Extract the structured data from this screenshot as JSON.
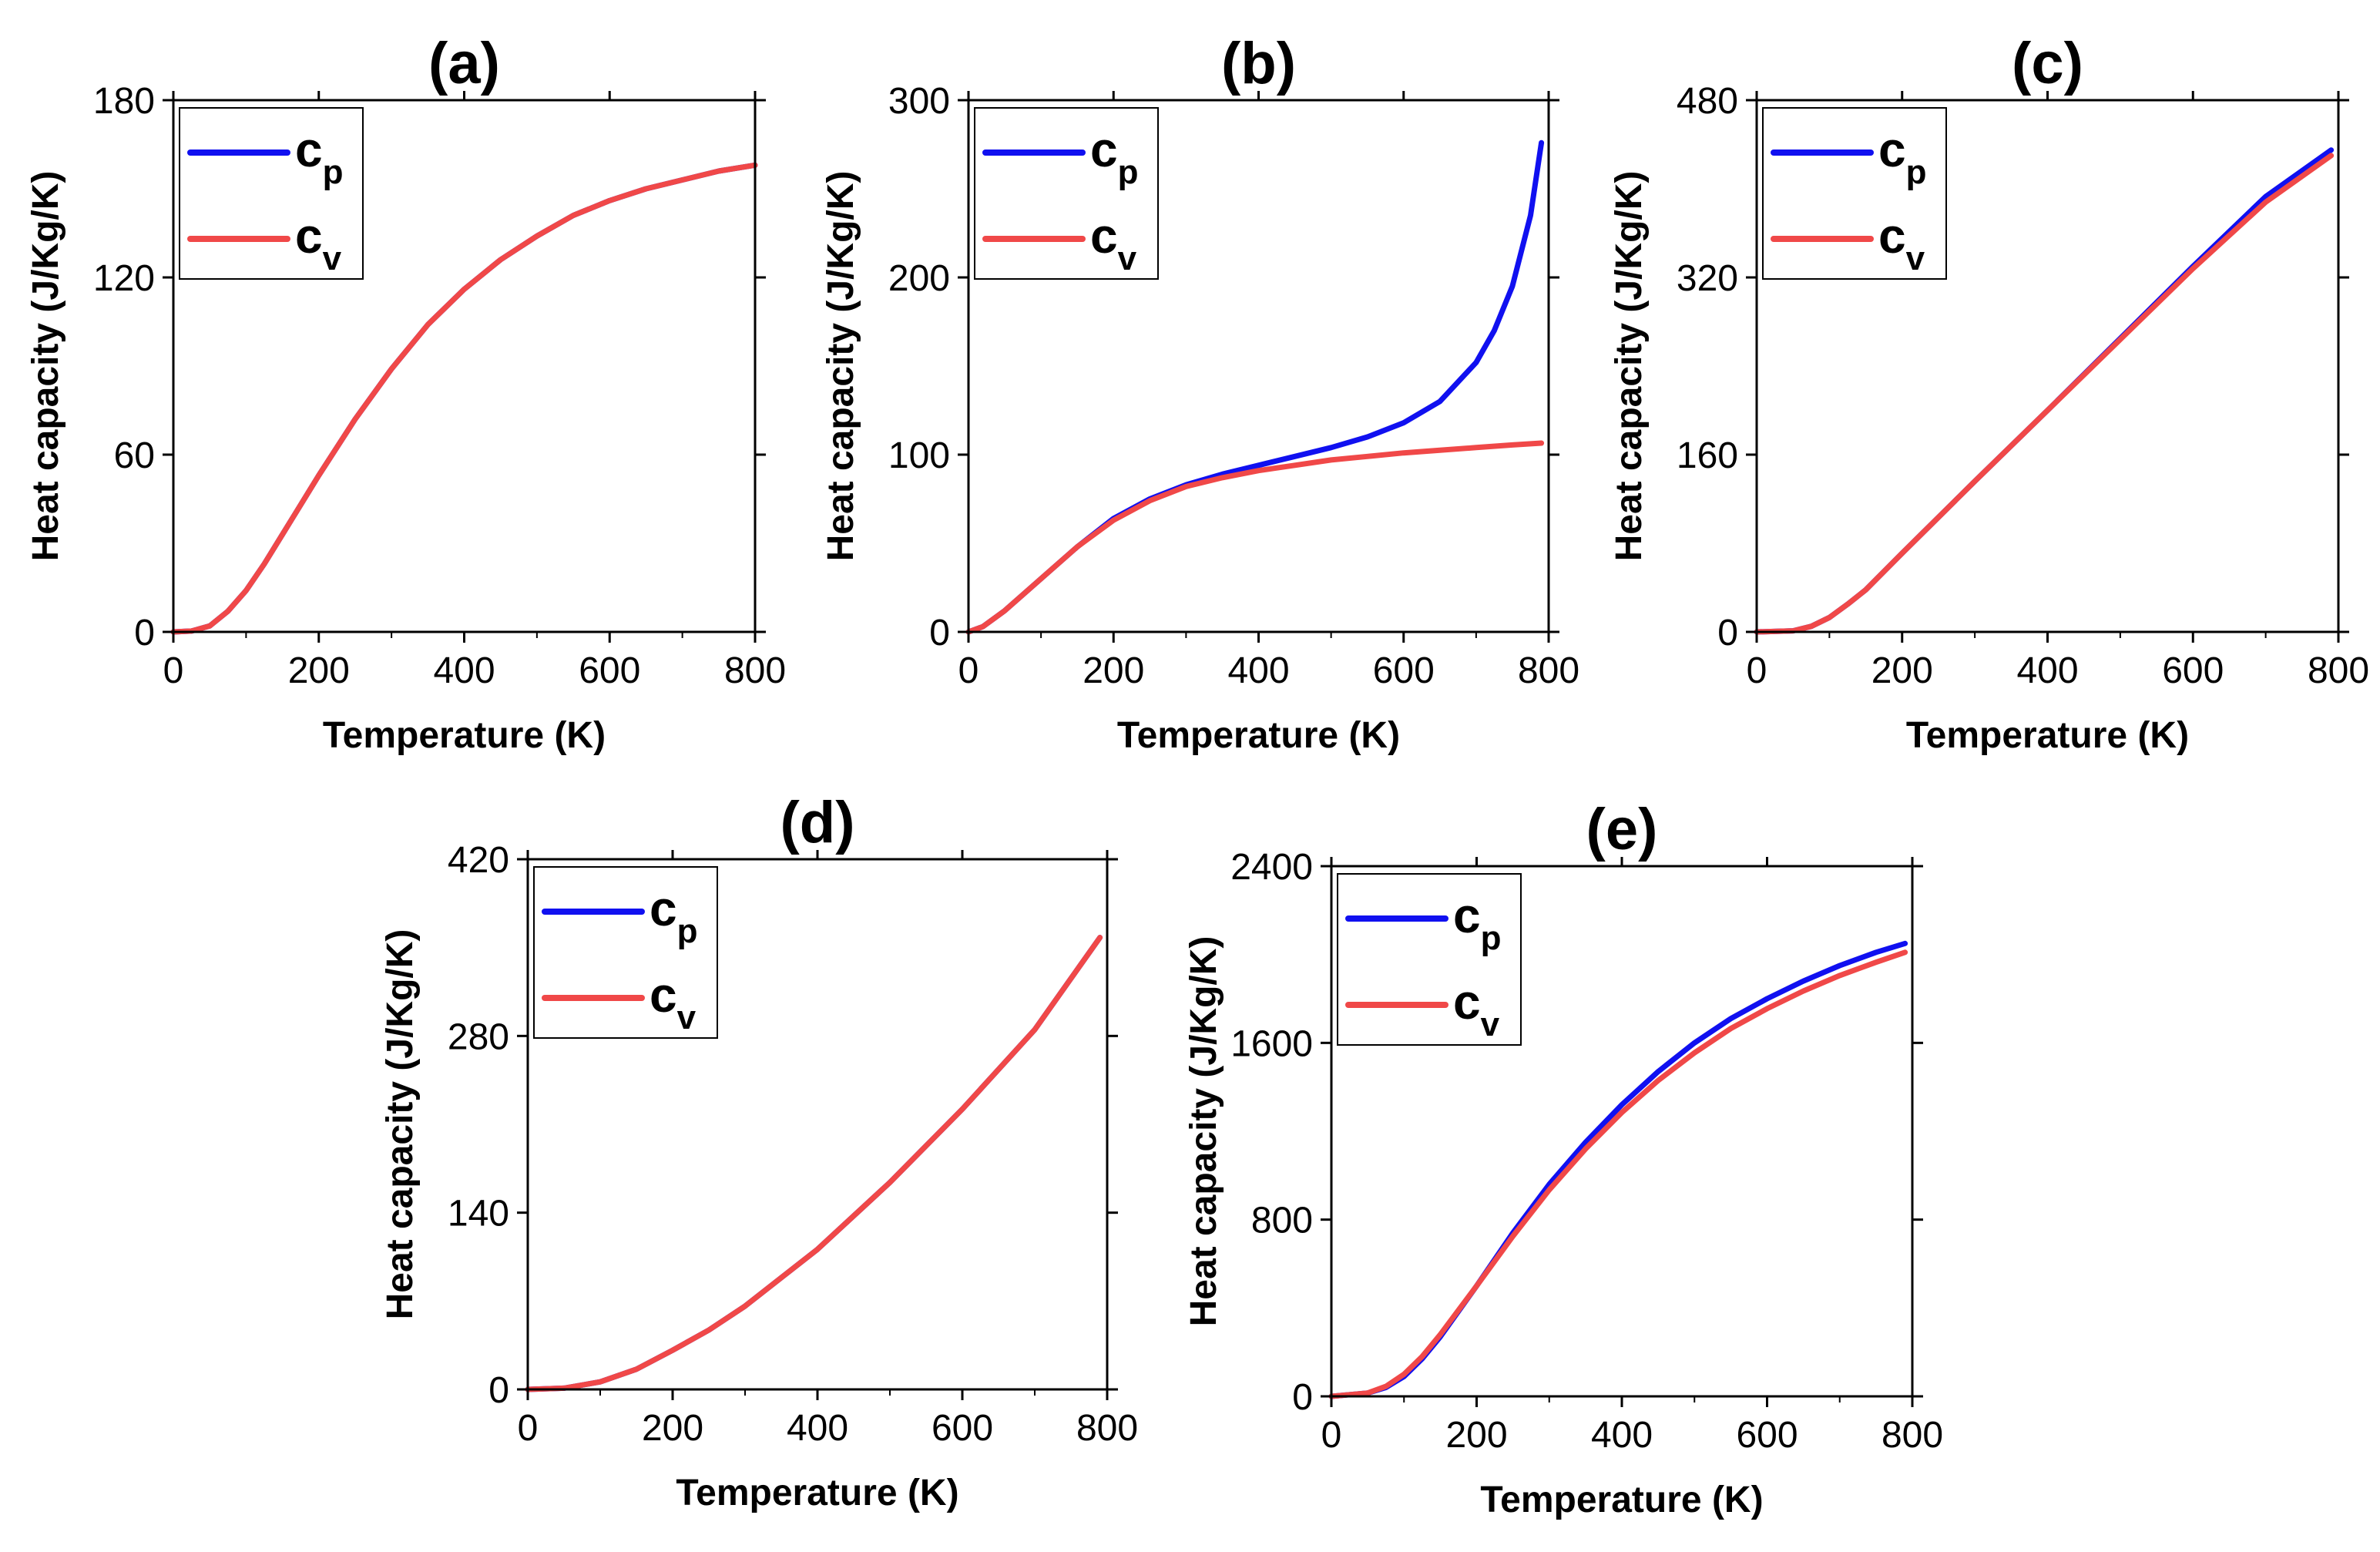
{
  "colors": {
    "cp": "#1010f0",
    "cv": "#f04848",
    "axis": "#000000"
  },
  "chart_data": [
    {
      "type": "line",
      "title": "(a)",
      "xlabel": "Temperature (K)",
      "ylabel": "Heat capacity (J/Kg/K)",
      "xlim": [
        0,
        800
      ],
      "ylim": [
        0,
        180
      ],
      "xticks": [
        "0",
        "200",
        "400",
        "600",
        "800"
      ],
      "yticks": [
        "0",
        "60",
        "120",
        "180"
      ],
      "legend": {
        "position": "top-left",
        "entries": [
          {
            "base": "c",
            "sub": "p"
          },
          {
            "base": "c",
            "sub": "v"
          }
        ]
      },
      "series": [
        {
          "name": "cp",
          "x": [
            0,
            25,
            50,
            75,
            100,
            125,
            150,
            175,
            200,
            250,
            300,
            350,
            400,
            450,
            500,
            550,
            600,
            650,
            700,
            750,
            800
          ],
          "values": [
            0,
            0.3,
            2,
            7,
            14,
            23,
            33,
            43,
            53,
            72,
            89,
            104,
            116,
            126,
            134,
            141,
            146,
            150,
            153,
            156,
            158
          ]
        },
        {
          "name": "cv",
          "x": [
            0,
            25,
            50,
            75,
            100,
            125,
            150,
            175,
            200,
            250,
            300,
            350,
            400,
            450,
            500,
            550,
            600,
            650,
            700,
            750,
            800
          ],
          "values": [
            0,
            0.3,
            2,
            7,
            14,
            23,
            33,
            43,
            53,
            72,
            89,
            104,
            116,
            126,
            134,
            141,
            146,
            150,
            153,
            156,
            158
          ]
        }
      ]
    },
    {
      "type": "line",
      "title": "(b)",
      "xlabel": "Temperature (K)",
      "ylabel": "Heat capacity (J/Kg/K)",
      "xlim": [
        0,
        800
      ],
      "ylim": [
        0,
        300
      ],
      "xticks": [
        "0",
        "200",
        "400",
        "600",
        "800"
      ],
      "yticks": [
        "0",
        "100",
        "200",
        "300"
      ],
      "legend": {
        "position": "top-left",
        "entries": [
          {
            "base": "c",
            "sub": "p"
          },
          {
            "base": "c",
            "sub": "v"
          }
        ]
      },
      "series": [
        {
          "name": "cp",
          "x": [
            0,
            20,
            50,
            100,
            150,
            200,
            250,
            300,
            350,
            400,
            450,
            500,
            550,
            600,
            650,
            700,
            725,
            750,
            775,
            790
          ],
          "values": [
            0,
            3,
            12,
            30,
            48,
            64,
            75,
            83,
            89,
            94,
            99,
            104,
            110,
            118,
            130,
            152,
            170,
            195,
            235,
            276
          ]
        },
        {
          "name": "cv",
          "x": [
            0,
            20,
            50,
            100,
            150,
            200,
            250,
            300,
            350,
            400,
            450,
            500,
            550,
            600,
            650,
            700,
            750,
            790
          ],
          "values": [
            0,
            3,
            12,
            30,
            48,
            63,
            74,
            82,
            87,
            91,
            94,
            97,
            99,
            101,
            102.5,
            104,
            105.5,
            106.5
          ]
        }
      ]
    },
    {
      "type": "line",
      "title": "(c)",
      "xlabel": "Temperature (K)",
      "ylabel": "Heat capacity (J/Kg/K)",
      "xlim": [
        0,
        800
      ],
      "ylim": [
        0,
        480
      ],
      "xticks": [
        "0",
        "200",
        "400",
        "600",
        "800"
      ],
      "yticks": [
        "0",
        "160",
        "320",
        "480"
      ],
      "legend": {
        "position": "top-left",
        "entries": [
          {
            "base": "c",
            "sub": "p"
          },
          {
            "base": "c",
            "sub": "v"
          }
        ]
      },
      "series": [
        {
          "name": "cp",
          "x": [
            0,
            50,
            75,
            100,
            125,
            150,
            200,
            300,
            400,
            500,
            600,
            700,
            790
          ],
          "values": [
            0,
            1,
            5,
            13,
            25,
            38,
            71,
            136,
            200,
            265,
            330,
            393,
            435
          ]
        },
        {
          "name": "cv",
          "x": [
            0,
            50,
            75,
            100,
            125,
            150,
            200,
            300,
            400,
            500,
            600,
            700,
            790
          ],
          "values": [
            0,
            1,
            5,
            13,
            25,
            38,
            71,
            136,
            200,
            264,
            328,
            388,
            430
          ]
        }
      ]
    },
    {
      "type": "line",
      "title": "(d)",
      "xlabel": "Temperature (K)",
      "ylabel": "Heat capacity (J/Kg/K)",
      "xlim": [
        0,
        800
      ],
      "ylim": [
        0,
        420
      ],
      "xticks": [
        "0",
        "200",
        "400",
        "600",
        "800"
      ],
      "yticks": [
        "0",
        "140",
        "280",
        "420"
      ],
      "legend": {
        "position": "top-left",
        "entries": [
          {
            "base": "c",
            "sub": "p"
          },
          {
            "base": "c",
            "sub": "v"
          }
        ]
      },
      "series": [
        {
          "name": "cp",
          "x": [
            0,
            50,
            100,
            150,
            200,
            250,
            300,
            400,
            500,
            600,
            700,
            790
          ],
          "values": [
            0,
            1,
            6,
            16,
            31,
            47,
            66,
            111,
            164,
            222,
            285,
            358
          ]
        },
        {
          "name": "cv",
          "x": [
            0,
            50,
            100,
            150,
            200,
            250,
            300,
            400,
            500,
            600,
            700,
            790
          ],
          "values": [
            0,
            1,
            6,
            16,
            31,
            47,
            66,
            111,
            164,
            222,
            285,
            358
          ]
        }
      ]
    },
    {
      "type": "line",
      "title": "(e)",
      "xlabel": "Temperature (K)",
      "ylabel": "Heat capacity (J/Kg/K)",
      "xlim": [
        0,
        800
      ],
      "ylim": [
        0,
        2400
      ],
      "xticks": [
        "0",
        "200",
        "400",
        "600",
        "800"
      ],
      "yticks": [
        "0",
        "800",
        "1600",
        "2400"
      ],
      "legend": {
        "position": "top-left",
        "entries": [
          {
            "base": "c",
            "sub": "p"
          },
          {
            "base": "c",
            "sub": "v"
          }
        ]
      },
      "series": [
        {
          "name": "cp",
          "x": [
            0,
            50,
            75,
            100,
            125,
            150,
            200,
            250,
            300,
            350,
            400,
            450,
            500,
            550,
            600,
            650,
            700,
            750,
            790
          ],
          "values": [
            0,
            15,
            40,
            90,
            170,
            270,
            500,
            740,
            960,
            1150,
            1320,
            1470,
            1600,
            1710,
            1800,
            1880,
            1950,
            2010,
            2050
          ]
        },
        {
          "name": "cv",
          "x": [
            0,
            50,
            75,
            100,
            125,
            150,
            200,
            250,
            300,
            350,
            400,
            450,
            500,
            550,
            600,
            650,
            700,
            750,
            790
          ],
          "values": [
            0,
            15,
            45,
            100,
            180,
            280,
            500,
            725,
            935,
            1120,
            1285,
            1430,
            1555,
            1665,
            1755,
            1835,
            1905,
            1965,
            2010
          ]
        }
      ]
    }
  ]
}
